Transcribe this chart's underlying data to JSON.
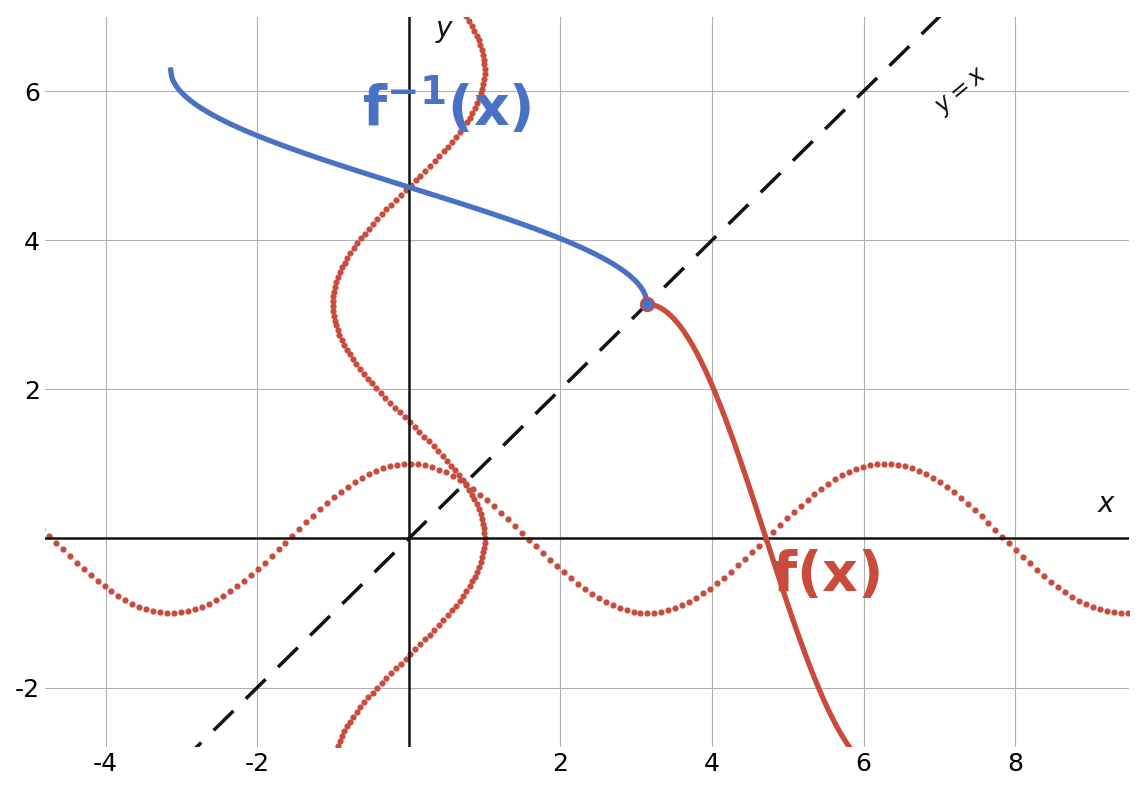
{
  "xlim": [
    -4.8,
    9.5
  ],
  "ylim": [
    -2.8,
    7.0
  ],
  "xticks": [
    -4,
    -2,
    0,
    2,
    4,
    6,
    8
  ],
  "yticks": [
    -2,
    2,
    4,
    6
  ],
  "f_domain_start": 3.14159265,
  "f_domain_end": 6.2831853,
  "f_color": "#C84B3C",
  "finv_color": "#4A72C4",
  "diag_color": "#111111",
  "dot_color": "#C84B3C",
  "linewidth": 3.8,
  "dot_size": 20,
  "background_color": "#ffffff",
  "grid_color": "#b0b0b0",
  "axis_color": "#111111",
  "pi": 3.14159265358979
}
